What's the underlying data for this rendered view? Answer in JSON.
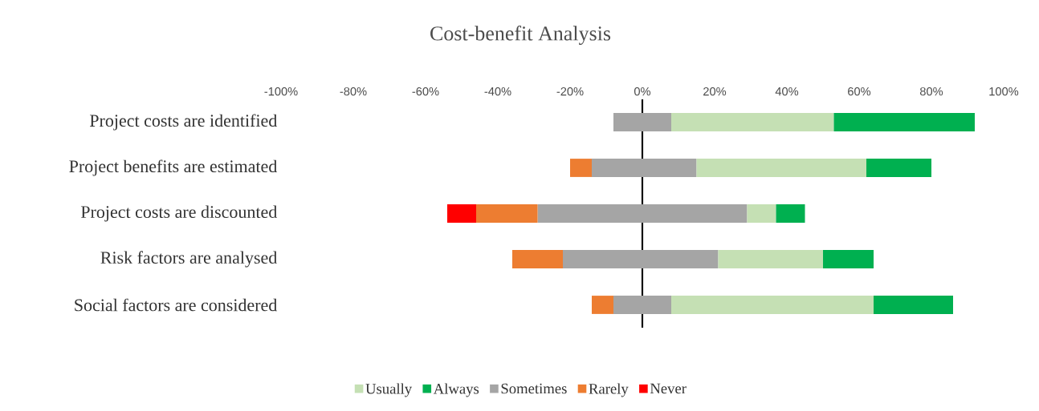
{
  "chart_data": {
    "type": "bar",
    "title": "Cost-benefit Analysis",
    "orientation": "horizontal",
    "stacked": true,
    "categories": [
      "Project costs are identified",
      "Project benefits are estimated",
      "Project costs are discounted",
      "Risk factors are analysed",
      "Social factors are considered"
    ],
    "series": [
      {
        "color": "#a5a5a5",
        "values": [
          8,
          15,
          29,
          21,
          8
        ]
      },
      {
        "name": "Usually",
        "color": "#c5e0b4",
        "values": [
          45,
          47,
          8,
          29,
          56
        ]
      },
      {
        "name": "Always",
        "color": "#00b050",
        "values": [
          39,
          18,
          8,
          14,
          22
        ]
      },
      {
        "name": "Sometimes",
        "color": "#a5a5a5",
        "values": [
          -8,
          -14,
          -29,
          -22,
          -8
        ]
      },
      {
        "name": "Rarely",
        "color": "#ed7d31",
        "values": [
          null,
          -6,
          -17,
          -14,
          -6
        ]
      },
      {
        "name": "Never",
        "color": "#ff0000",
        "values": [
          null,
          null,
          -8,
          null,
          null
        ]
      }
    ],
    "xlim": [
      -100,
      100
    ],
    "xticks": [
      {
        "value": -100,
        "label": "-100%"
      },
      {
        "value": -80,
        "label": "-80%"
      },
      {
        "value": -60,
        "label": "-60%"
      },
      {
        "value": -40,
        "label": "-40%"
      },
      {
        "value": -20,
        "label": "-20%"
      },
      {
        "value": 0,
        "label": "0%"
      },
      {
        "value": 20,
        "label": "20%"
      },
      {
        "value": 40,
        "label": "40%"
      },
      {
        "value": 60,
        "label": "60%"
      },
      {
        "value": 80,
        "label": "80%"
      },
      {
        "value": 100,
        "label": "100%"
      }
    ],
    "ref_lines": [
      {
        "axis": "x",
        "value": 0,
        "color": "#000000"
      }
    ],
    "legend": "bottom",
    "grid": false
  }
}
